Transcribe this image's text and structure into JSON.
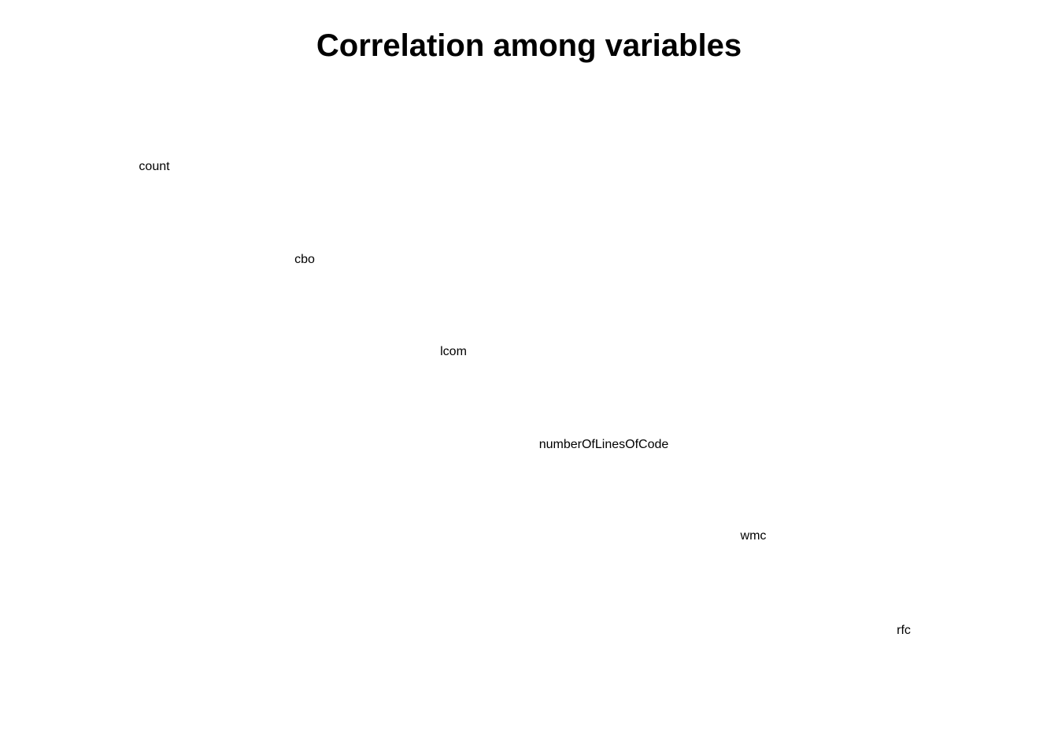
{
  "chart_data": {
    "type": "table",
    "title": "Correlation among variables",
    "variables": [
      "count",
      "cbo",
      "lcom",
      "numberOfLinesOfCode",
      "wmc",
      "rfc"
    ]
  }
}
